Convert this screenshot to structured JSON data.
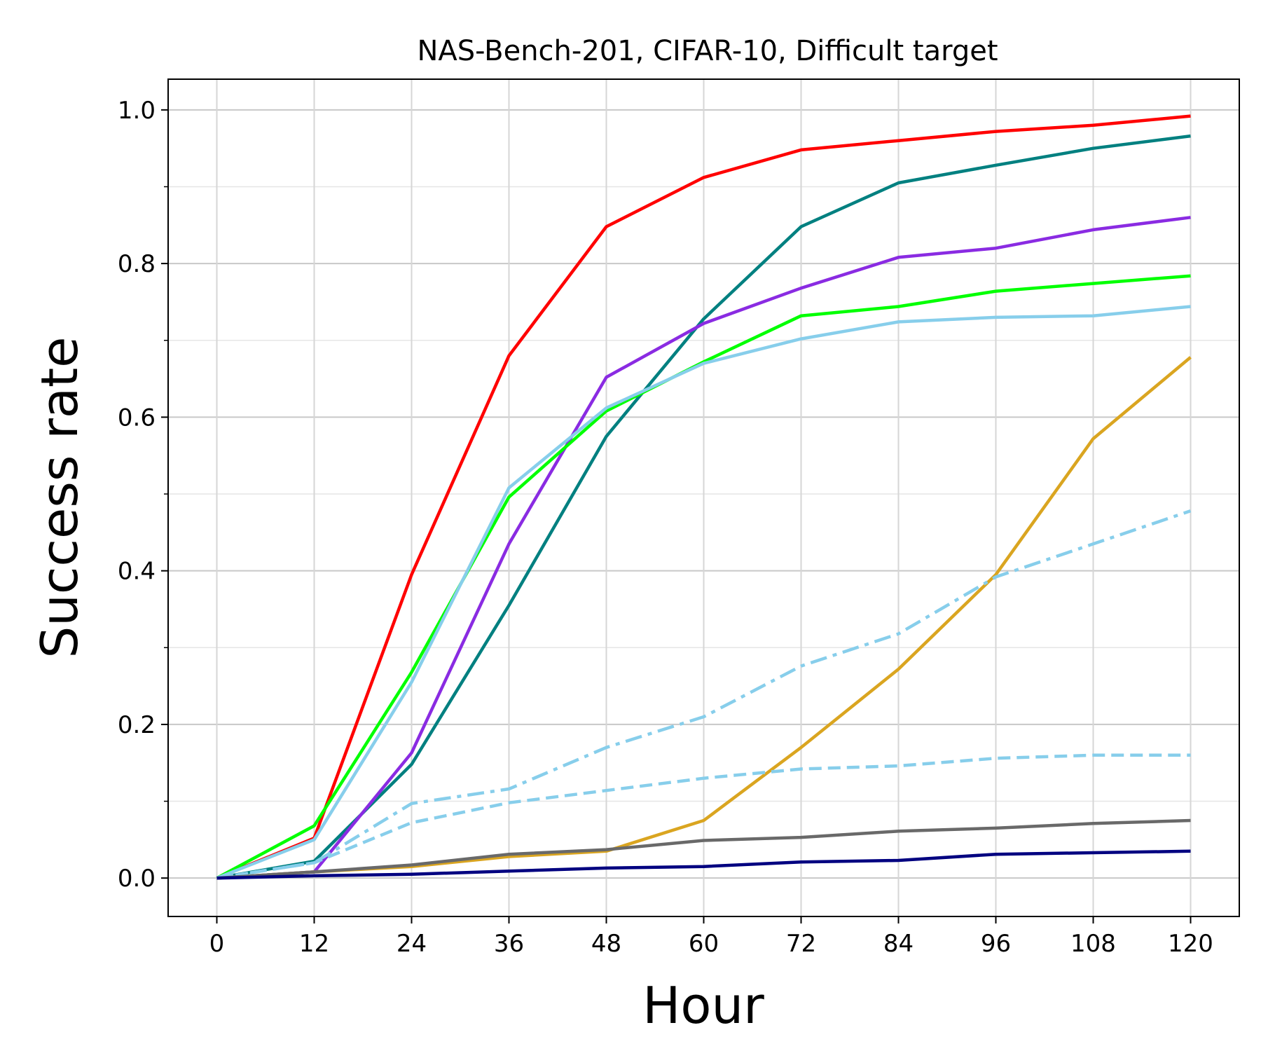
{
  "chart_data": {
    "type": "line",
    "title": "NAS-Bench-201, CIFAR-10, Difficult target",
    "xlabel": "Hour",
    "ylabel": "Success rate",
    "x": [
      0,
      12,
      24,
      36,
      48,
      60,
      72,
      84,
      96,
      108,
      120
    ],
    "x_tick_labels": [
      "0",
      "12",
      "24",
      "36",
      "48",
      "60",
      "72",
      "84",
      "96",
      "108",
      "120"
    ],
    "y_ticks": [
      0.0,
      0.2,
      0.4,
      0.6,
      0.8,
      1.0
    ],
    "y_tick_labels": [
      "0.0",
      "0.2",
      "0.4",
      "0.6",
      "0.8",
      "1.0"
    ],
    "xlim": [
      -6,
      126
    ],
    "ylim": [
      -0.05,
      1.04
    ],
    "grid": true,
    "series": [
      {
        "name": "red",
        "color": "#ff0000",
        "dash": "solid",
        "values": [
          0.0,
          0.052,
          0.395,
          0.68,
          0.848,
          0.912,
          0.948,
          0.96,
          0.972,
          0.98,
          0.992
        ]
      },
      {
        "name": "teal",
        "color": "#008080",
        "dash": "solid",
        "values": [
          0.0,
          0.022,
          0.148,
          0.355,
          0.575,
          0.728,
          0.848,
          0.905,
          0.928,
          0.95,
          0.966
        ]
      },
      {
        "name": "violet",
        "color": "#8a2be2",
        "dash": "solid",
        "values": [
          0.0,
          0.008,
          0.163,
          0.435,
          0.652,
          0.722,
          0.768,
          0.808,
          0.82,
          0.844,
          0.86
        ]
      },
      {
        "name": "lime",
        "color": "#00ff00",
        "dash": "solid",
        "values": [
          0.0,
          0.068,
          0.268,
          0.496,
          0.608,
          0.672,
          0.732,
          0.744,
          0.764,
          0.774,
          0.784
        ]
      },
      {
        "name": "skyblue",
        "color": "#87ceeb",
        "dash": "solid",
        "values": [
          0.0,
          0.05,
          0.255,
          0.508,
          0.612,
          0.67,
          0.702,
          0.724,
          0.73,
          0.732,
          0.744
        ]
      },
      {
        "name": "goldenrod",
        "color": "#daa520",
        "dash": "solid",
        "values": [
          0.0,
          0.008,
          0.015,
          0.028,
          0.035,
          0.075,
          0.17,
          0.272,
          0.395,
          0.572,
          0.678
        ]
      },
      {
        "name": "skyblue-dashdot",
        "color": "#87ceeb",
        "dash": "dashdot",
        "values": [
          0.0,
          0.02,
          0.097,
          0.116,
          0.17,
          0.21,
          0.276,
          0.318,
          0.392,
          0.435,
          0.478
        ]
      },
      {
        "name": "skyblue-dashed",
        "color": "#87ceeb",
        "dash": "dashed",
        "values": [
          0.0,
          0.02,
          0.072,
          0.098,
          0.114,
          0.13,
          0.142,
          0.146,
          0.156,
          0.16,
          0.16
        ]
      },
      {
        "name": "dimgray",
        "color": "#696969",
        "dash": "solid",
        "values": [
          0.0,
          0.008,
          0.017,
          0.031,
          0.037,
          0.049,
          0.053,
          0.061,
          0.065,
          0.071,
          0.075
        ]
      },
      {
        "name": "navy",
        "color": "#000080",
        "dash": "solid",
        "values": [
          0.0,
          0.003,
          0.005,
          0.009,
          0.013,
          0.015,
          0.021,
          0.023,
          0.031,
          0.033,
          0.035
        ]
      }
    ]
  }
}
